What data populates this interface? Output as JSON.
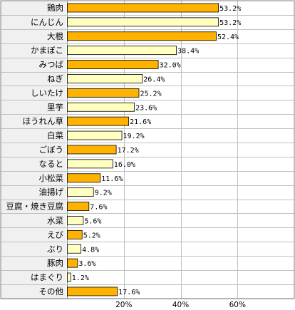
{
  "chart_data": {
    "type": "bar",
    "orientation": "horizontal",
    "title": "",
    "xlabel": "",
    "ylabel": "",
    "categories": [
      "鶏肉",
      "にんじん",
      "大根",
      "かまぼこ",
      "みつば",
      "ねぎ",
      "しいたけ",
      "里芋",
      "ほうれん草",
      "白菜",
      "ごぼう",
      "なると",
      "小松菜",
      "油揚げ",
      "豆腐・焼き豆腐",
      "水菜",
      "えび",
      "ぶり",
      "豚肉",
      "はまぐり",
      "その他"
    ],
    "values": [
      53.2,
      53.2,
      52.4,
      38.4,
      32.0,
      26.4,
      25.2,
      23.6,
      21.6,
      19.2,
      17.2,
      16.0,
      11.6,
      9.2,
      7.6,
      5.6,
      5.2,
      4.8,
      3.6,
      1.2,
      17.6
    ],
    "value_labels": [
      "53.2%",
      "53.2%",
      "52.4%",
      "38.4%",
      "32.0%",
      "26.4%",
      "25.2%",
      "23.6%",
      "21.6%",
      "19.2%",
      "17.2%",
      "16.0%",
      "11.6%",
      "9.2%",
      "7.6%",
      "5.6%",
      "5.2%",
      "4.8%",
      "3.6%",
      "1.2%",
      "17.6%"
    ],
    "highlight": [
      true,
      false,
      true,
      false,
      true,
      false,
      true,
      false,
      true,
      false,
      true,
      false,
      true,
      false,
      true,
      false,
      true,
      false,
      true,
      false,
      true
    ],
    "xlim": [
      0,
      80
    ],
    "xticks": [
      20,
      40,
      60
    ],
    "xtick_labels": [
      "20%",
      "40%",
      "60%"
    ],
    "grid": true,
    "legend": "none",
    "colors": {
      "bar_highlight": "#ffb300",
      "bar_plain": "#ffffc0",
      "bar_border": "#000000",
      "grid": "#c0c0c0",
      "label_bg": "#f0f0f0",
      "frame": "#808080"
    }
  }
}
